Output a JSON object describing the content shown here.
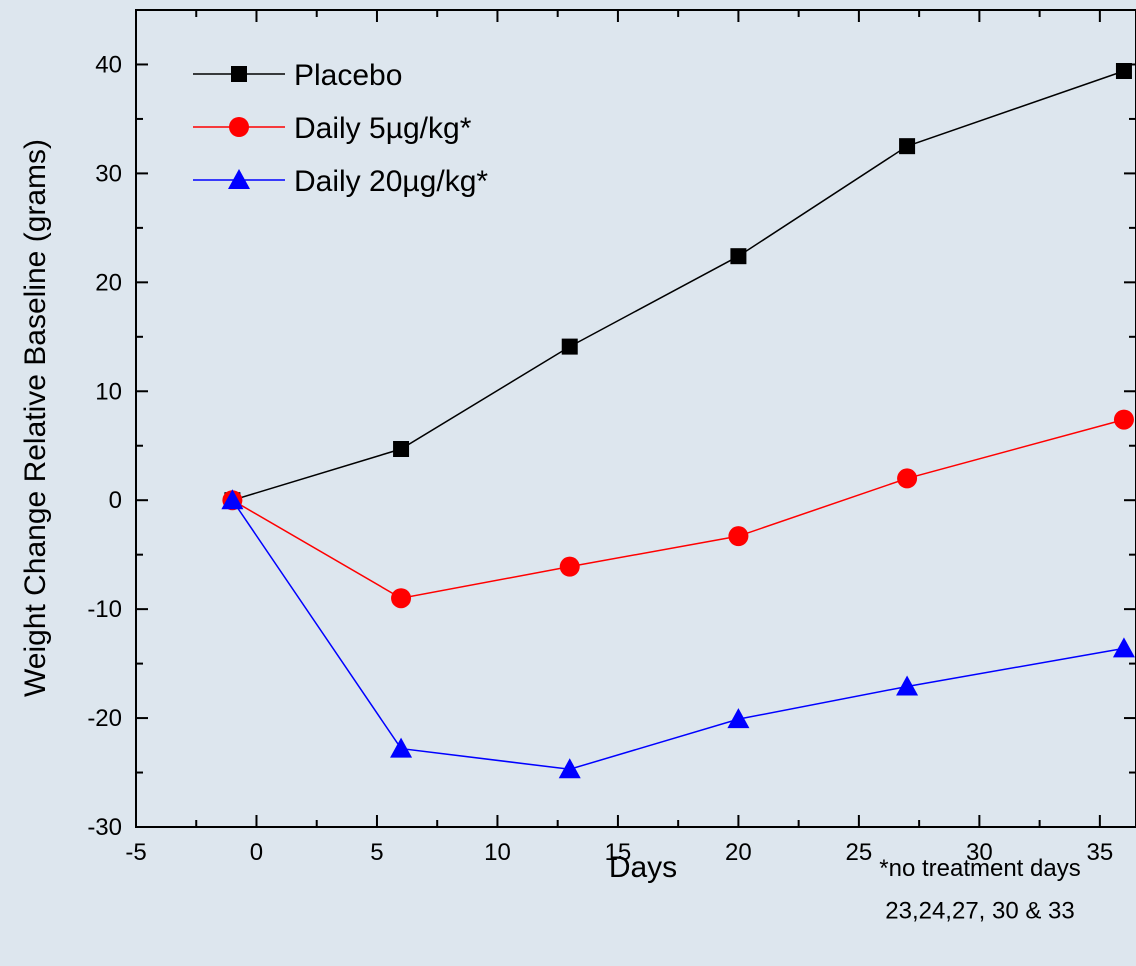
{
  "chart_data": {
    "type": "line",
    "xlabel": "Days",
    "ylabel": "Weight Change Relative Baseline (grams)",
    "xlim": [
      -5,
      36.5
    ],
    "ylim": [
      -30,
      45
    ],
    "x_ticks": [
      -5,
      0,
      5,
      10,
      15,
      20,
      25,
      30,
      35
    ],
    "y_ticks": [
      -30,
      -20,
      -10,
      0,
      10,
      20,
      30,
      40
    ],
    "grid": false,
    "legend_position": "top-left",
    "series": [
      {
        "name": "Placebo",
        "color": "#000000",
        "marker": "square",
        "x": [
          -1,
          6,
          13,
          20,
          27,
          36
        ],
        "y": [
          0,
          4.7,
          14.1,
          22.4,
          32.5,
          39.4
        ]
      },
      {
        "name": "Daily 5µg/kg*",
        "color": "#ff0000",
        "marker": "circle",
        "x": [
          -1,
          6,
          13,
          20,
          27,
          36
        ],
        "y": [
          0,
          -9.0,
          -6.1,
          -3.3,
          2.0,
          7.4
        ]
      },
      {
        "name": "Daily 20µg/kg*",
        "color": "#0000ff",
        "marker": "triangle",
        "x": [
          -1,
          6,
          13,
          20,
          27,
          36
        ],
        "y": [
          0,
          -22.8,
          -24.7,
          -20.1,
          -17.1,
          -13.6
        ]
      }
    ],
    "annotation": [
      "*no treatment days",
      "23,24,27, 30 & 33"
    ]
  }
}
